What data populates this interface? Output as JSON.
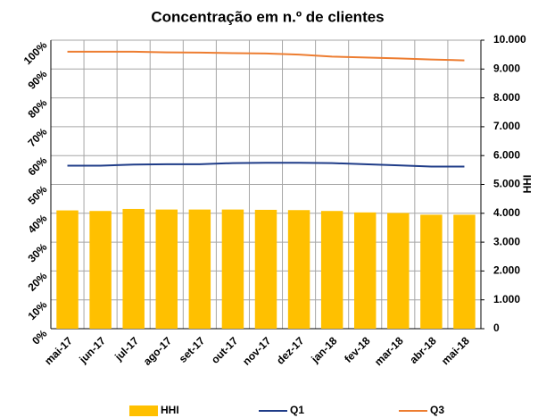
{
  "chart_data": {
    "type": "bar_line",
    "title": "Concentração em n.º de clientes",
    "categories": [
      "mai-17",
      "jun-17",
      "jul-17",
      "ago-17",
      "set-17",
      "out-17",
      "nov-17",
      "dez-17",
      "jan-18",
      "fev-18",
      "mar-18",
      "abr-18",
      "mai-18"
    ],
    "series": [
      {
        "name": "HHI",
        "type": "bar",
        "axis": "y2",
        "color": "#ffc000",
        "values": [
          4100,
          4080,
          4150,
          4130,
          4130,
          4130,
          4120,
          4110,
          4080,
          4030,
          4010,
          3950,
          3950
        ]
      },
      {
        "name": "Q1",
        "type": "line",
        "color": "#1f3c88",
        "values": [
          56.5,
          56.5,
          56.9,
          57,
          57,
          57.4,
          57.5,
          57.5,
          57.4,
          57,
          56.6,
          56.2,
          56.2
        ]
      },
      {
        "name": "Q3",
        "type": "line",
        "color": "#ed7d31",
        "values": [
          96,
          96,
          96,
          95.8,
          95.7,
          95.5,
          95.4,
          95,
          94.3,
          94,
          93.7,
          93.3,
          93
        ]
      }
    ],
    "ylim": [
      0,
      100
    ],
    "yticks": [
      {
        "value": 0,
        "label": "0%"
      },
      {
        "value": 10,
        "label": "10%"
      },
      {
        "value": 20,
        "label": "20%"
      },
      {
        "value": 30,
        "label": "30%"
      },
      {
        "value": 40,
        "label": "40%"
      },
      {
        "value": 50,
        "label": "50%"
      },
      {
        "value": 60,
        "label": "60%"
      },
      {
        "value": 70,
        "label": "70%"
      },
      {
        "value": 80,
        "label": "80%"
      },
      {
        "value": 90,
        "label": "90%"
      },
      {
        "value": 100,
        "label": "100%"
      }
    ],
    "y2lim": [
      0,
      10000
    ],
    "y2ticks": [
      0,
      {
        "value": 1000,
        "label": "1.000"
      },
      {
        "value": 2000,
        "label": "2.000"
      },
      {
        "value": 3000,
        "label": "3.000"
      },
      {
        "value": 4000,
        "label": "4.000"
      },
      {
        "value": 5000,
        "label": "5.000"
      },
      {
        "value": 6000,
        "label": "6.000"
      },
      {
        "value": 7000,
        "label": "7.000"
      },
      {
        "value": 8000,
        "label": "8.000"
      },
      {
        "value": 9000,
        "label": "9.000"
      },
      {
        "value": 10000,
        "label": "10.000"
      }
    ],
    "y2label": "HHI",
    "grid": true
  }
}
